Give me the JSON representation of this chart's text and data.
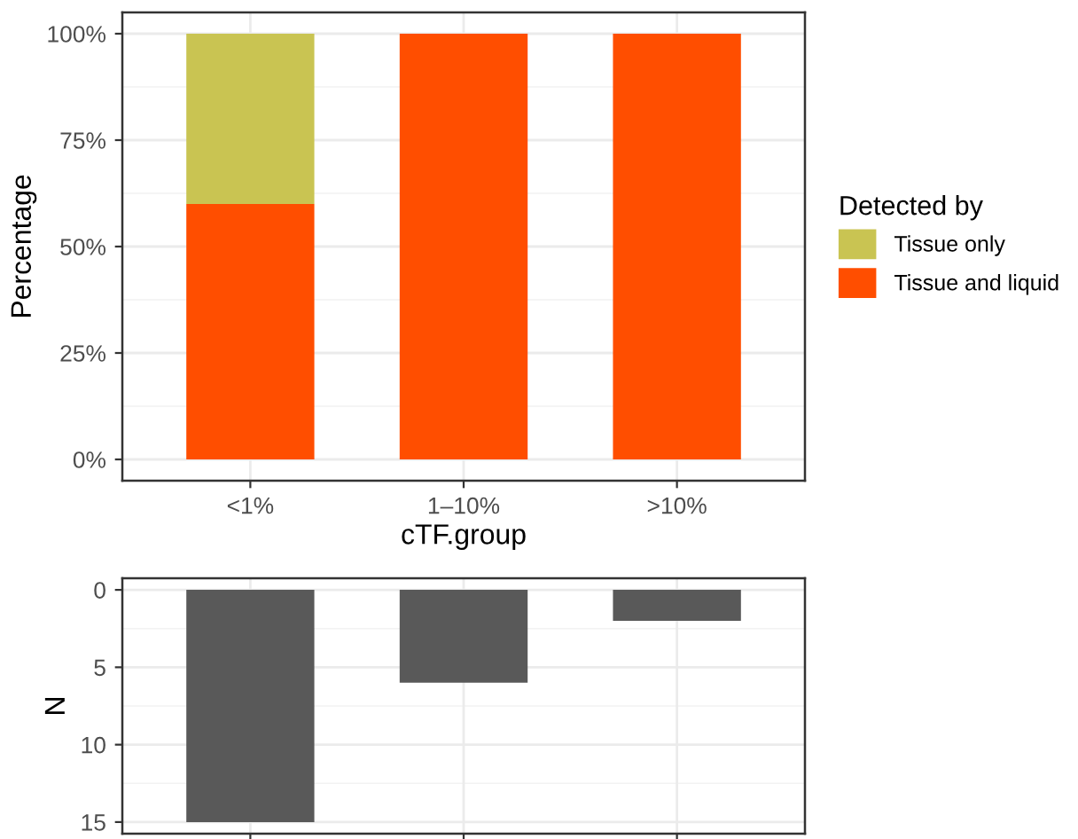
{
  "chart_data": [
    {
      "type": "bar",
      "stacked": true,
      "xlabel": "cTF.group",
      "ylabel": "Percentage",
      "legend_title": "Detected by",
      "legend": "right",
      "categories": [
        "<1%",
        "1–10%",
        ">10%"
      ],
      "series": [
        {
          "name": "Tissue and liquid",
          "color": "#ff4e00",
          "values": [
            60,
            100,
            100
          ]
        },
        {
          "name": "Tissue only",
          "color": "#c9c452",
          "values": [
            40,
            0,
            0
          ]
        }
      ],
      "ylim": [
        -5,
        105
      ],
      "yticks": [
        {
          "value": 0,
          "label": "0%"
        },
        {
          "value": 25,
          "label": "25%"
        },
        {
          "value": 50,
          "label": "50%"
        },
        {
          "value": 75,
          "label": "75%"
        },
        {
          "value": 100,
          "label": "100%"
        }
      ],
      "grid": true
    },
    {
      "type": "bar",
      "ylabel": "N",
      "categories": [
        null,
        null,
        null
      ],
      "series": [
        {
          "color": "#595959",
          "values": [
            15,
            6,
            2
          ]
        }
      ],
      "ylim": [
        15.75,
        -0.75
      ],
      "yticks": [
        0,
        5,
        10,
        15
      ],
      "tick_labels": "y",
      "grid": true
    }
  ]
}
